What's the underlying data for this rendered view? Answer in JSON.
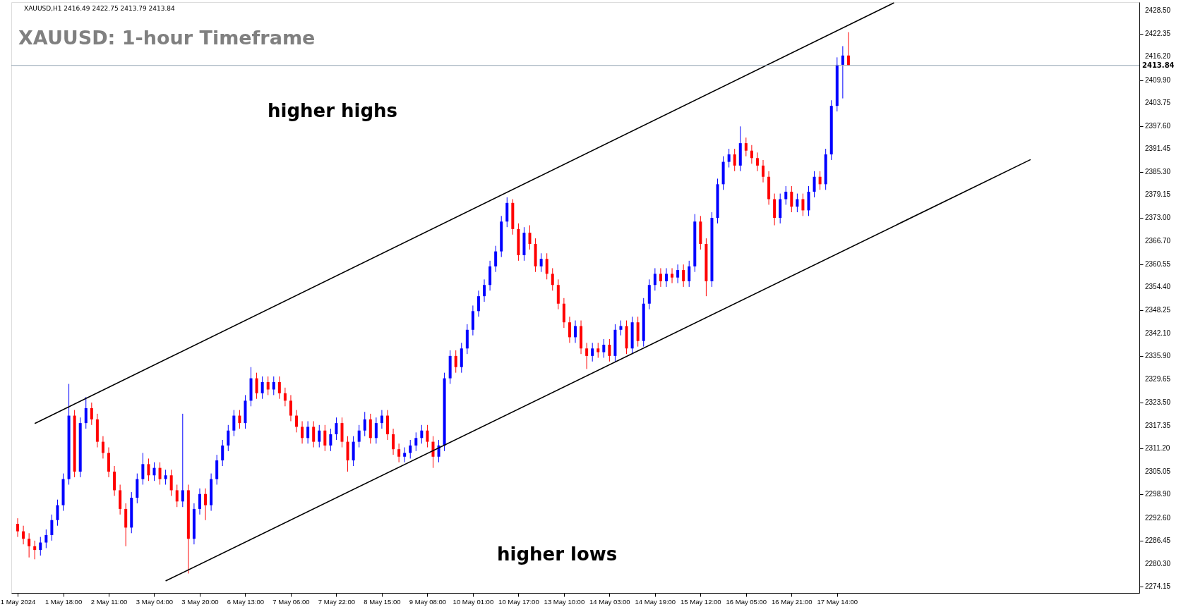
{
  "chart_data": {
    "type": "candlestick",
    "title": "XAUUSD: 1-hour Timeframe",
    "subtitle": "XAUUSD,H1  2416.49 2422.75 2413.79 2413.84",
    "categories": [
      "1 May 2024",
      null,
      null,
      null,
      null,
      null,
      null,
      null,
      "1 May 18:00",
      null,
      null,
      null,
      null,
      null,
      null,
      null,
      "2 May 11:00",
      null,
      null,
      null,
      null,
      null,
      null,
      null,
      "3 May 04:00",
      null,
      null,
      null,
      null,
      null,
      null,
      null,
      "3 May 20:00",
      null,
      null,
      null,
      null,
      null,
      null,
      null,
      "6 May 13:00",
      null,
      null,
      null,
      null,
      null,
      null,
      null,
      "7 May 06:00",
      null,
      null,
      null,
      null,
      null,
      null,
      null,
      "7 May 22:00",
      null,
      null,
      null,
      null,
      null,
      null,
      null,
      "8 May 15:00",
      null,
      null,
      null,
      null,
      null,
      null,
      null,
      "9 May 08:00",
      null,
      null,
      null,
      null,
      null,
      null,
      null,
      "10 May 01:00",
      null,
      null,
      null,
      null,
      null,
      null,
      null,
      "10 May 17:00",
      null,
      null,
      null,
      null,
      null,
      null,
      null,
      "13 May 10:00",
      null,
      null,
      null,
      null,
      null,
      null,
      null,
      "14 May 03:00",
      null,
      null,
      null,
      null,
      null,
      null,
      null,
      "14 May 19:00",
      null,
      null,
      null,
      null,
      null,
      null,
      null,
      "15 May 12:00",
      null,
      null,
      null,
      null,
      null,
      null,
      null,
      "16 May 05:00",
      null,
      null,
      null,
      null,
      null,
      null,
      null,
      "16 May 21:00",
      null,
      null,
      null,
      null,
      null,
      null,
      null,
      "17 May 14:00",
      null,
      null,
      null,
      null,
      null,
      null,
      null,
      null,
      null,
      null,
      null,
      null,
      null,
      null,
      null,
      null,
      null,
      null,
      null,
      null,
      null,
      null,
      null,
      null,
      null,
      null,
      null,
      null,
      null,
      null,
      null,
      null,
      null,
      null,
      null,
      null,
      null,
      null,
      null,
      null,
      null,
      null,
      null,
      null,
      null,
      null,
      null,
      null,
      null,
      null,
      null,
      null
    ],
    "ohlc": [
      [
        2291,
        2292.5,
        2287.5,
        2289
      ],
      [
        2289,
        2290.5,
        2285.5,
        2287
      ],
      [
        2287,
        2288.5,
        2282,
        2285
      ],
      [
        2285,
        2286.5,
        2281.5,
        2284
      ],
      [
        2284,
        2287.5,
        2282.5,
        2286
      ],
      [
        2286,
        2289.5,
        2284.5,
        2288
      ],
      [
        2288,
        2293.5,
        2286.5,
        2292
      ],
      [
        2292,
        2297.5,
        2290.5,
        2296
      ],
      [
        2296,
        2304.5,
        2294.5,
        2303
      ],
      [
        2303,
        2328.5,
        2301.5,
        2320
      ],
      [
        2320,
        2321.5,
        2303.5,
        2305
      ],
      [
        2305,
        2319.5,
        2303.5,
        2318
      ],
      [
        2318,
        2325,
        2316.5,
        2322
      ],
      [
        2322,
        2323.5,
        2317.5,
        2319
      ],
      [
        2319,
        2320.5,
        2311.5,
        2313
      ],
      [
        2313,
        2314.5,
        2308.5,
        2310
      ],
      [
        2310,
        2311.5,
        2303.5,
        2305
      ],
      [
        2305,
        2306.5,
        2298.5,
        2300
      ],
      [
        2300,
        2301.5,
        2293.5,
        2295
      ],
      [
        2295,
        2296.5,
        2285,
        2290
      ],
      [
        2290,
        2299.5,
        2288.5,
        2298
      ],
      [
        2298,
        2304.5,
        2296.5,
        2303
      ],
      [
        2303,
        2310,
        2301.5,
        2307
      ],
      [
        2307,
        2308.5,
        2302.5,
        2304
      ],
      [
        2304,
        2307.5,
        2302.5,
        2306
      ],
      [
        2306,
        2307.5,
        2301.5,
        2303
      ],
      [
        2303,
        2305.5,
        2301.5,
        2304
      ],
      [
        2304,
        2305.5,
        2298.5,
        2300
      ],
      [
        2300,
        2301.5,
        2295.5,
        2297
      ],
      [
        2297,
        2320.5,
        2295.5,
        2300
      ],
      [
        2300,
        2301.5,
        2277.7,
        2287
      ],
      [
        2287,
        2296.5,
        2285.5,
        2295
      ],
      [
        2295,
        2300.5,
        2293.5,
        2299
      ],
      [
        2299,
        2300.5,
        2292,
        2296
      ],
      [
        2296,
        2304.5,
        2294.5,
        2303
      ],
      [
        2303,
        2309.5,
        2301.5,
        2308
      ],
      [
        2308,
        2313.5,
        2306.5,
        2312
      ],
      [
        2312,
        2317.5,
        2310.5,
        2316
      ],
      [
        2316,
        2321.5,
        2314.5,
        2320
      ],
      [
        2320,
        2321.5,
        2316.5,
        2318
      ],
      [
        2318,
        2325.5,
        2316.5,
        2324
      ],
      [
        2324,
        2333,
        2322.5,
        2330
      ],
      [
        2330,
        2331.5,
        2324.5,
        2326
      ],
      [
        2326,
        2330.5,
        2324.5,
        2329
      ],
      [
        2329,
        2330.5,
        2325.5,
        2327
      ],
      [
        2327,
        2330.5,
        2325.5,
        2329
      ],
      [
        2329,
        2330.5,
        2324.5,
        2326
      ],
      [
        2326,
        2327.5,
        2322.5,
        2324
      ],
      [
        2324,
        2325.5,
        2318.5,
        2320
      ],
      [
        2320,
        2321.5,
        2315.5,
        2317
      ],
      [
        2317,
        2318.5,
        2312.5,
        2314
      ],
      [
        2314,
        2318.5,
        2312.5,
        2317
      ],
      [
        2317,
        2318.5,
        2311.5,
        2313
      ],
      [
        2313,
        2317.5,
        2311.5,
        2316
      ],
      [
        2316,
        2317.5,
        2310.5,
        2312
      ],
      [
        2312,
        2316.5,
        2310.5,
        2315
      ],
      [
        2315,
        2319.5,
        2313.5,
        2318
      ],
      [
        2318,
        2319.5,
        2311.5,
        2313
      ],
      [
        2313,
        2314.5,
        2305,
        2308
      ],
      [
        2308,
        2314.5,
        2306.5,
        2313
      ],
      [
        2313,
        2317.5,
        2311.5,
        2316
      ],
      [
        2316,
        2321,
        2314.5,
        2319
      ],
      [
        2319,
        2320.5,
        2312.5,
        2314
      ],
      [
        2314,
        2319.5,
        2312.5,
        2318
      ],
      [
        2318,
        2321.5,
        2316.5,
        2320
      ],
      [
        2320,
        2321.5,
        2313.5,
        2315
      ],
      [
        2315,
        2316.5,
        2309.5,
        2311
      ],
      [
        2311,
        2312.5,
        2307.5,
        2309
      ],
      [
        2309,
        2311.5,
        2307.5,
        2310
      ],
      [
        2310,
        2313.5,
        2308.5,
        2312
      ],
      [
        2312,
        2315.5,
        2310.5,
        2314
      ],
      [
        2314,
        2317.5,
        2312.5,
        2316
      ],
      [
        2316,
        2317.5,
        2311.5,
        2313
      ],
      [
        2313,
        2314.5,
        2306,
        2309
      ],
      [
        2309,
        2313.5,
        2307.5,
        2312
      ],
      [
        2312,
        2331.5,
        2310.5,
        2330
      ],
      [
        2330,
        2337.5,
        2328.5,
        2336
      ],
      [
        2336,
        2337.5,
        2331.5,
        2333
      ],
      [
        2333,
        2339.5,
        2331.5,
        2338
      ],
      [
        2338,
        2344.5,
        2336.5,
        2343
      ],
      [
        2343,
        2349.5,
        2341.5,
        2348
      ],
      [
        2348,
        2353.5,
        2346.5,
        2352
      ],
      [
        2352,
        2356.5,
        2350.5,
        2355
      ],
      [
        2355,
        2361.5,
        2353.5,
        2360
      ],
      [
        2360,
        2365.5,
        2358.5,
        2364
      ],
      [
        2364,
        2373.5,
        2362.5,
        2372
      ],
      [
        2372,
        2378.5,
        2370.5,
        2377
      ],
      [
        2377,
        2378,
        2368.5,
        2370
      ],
      [
        2370,
        2371.5,
        2361.5,
        2363
      ],
      [
        2363,
        2370.5,
        2361.5,
        2369
      ],
      [
        2369,
        2371,
        2364.5,
        2366
      ],
      [
        2366,
        2367.5,
        2358.5,
        2360
      ],
      [
        2360,
        2363.5,
        2358.5,
        2362
      ],
      [
        2362,
        2363.5,
        2356.5,
        2358
      ],
      [
        2358,
        2359.5,
        2353.5,
        2355
      ],
      [
        2355,
        2356.5,
        2348.5,
        2350
      ],
      [
        2350,
        2351.5,
        2343.5,
        2345
      ],
      [
        2345,
        2346.5,
        2339.5,
        2341
      ],
      [
        2341,
        2345.5,
        2339.5,
        2344
      ],
      [
        2344,
        2345.5,
        2336.5,
        2338
      ],
      [
        2338,
        2339.5,
        2332.5,
        2336
      ],
      [
        2336,
        2339.5,
        2334.5,
        2338
      ],
      [
        2338,
        2339.5,
        2335.5,
        2337
      ],
      [
        2337,
        2340.5,
        2335.5,
        2339
      ],
      [
        2339,
        2340.5,
        2334.5,
        2336
      ],
      [
        2336,
        2344.5,
        2334.5,
        2343
      ],
      [
        2343,
        2345.5,
        2341.5,
        2344
      ],
      [
        2344,
        2345.5,
        2336.5,
        2338
      ],
      [
        2338,
        2346.5,
        2336.5,
        2345
      ],
      [
        2345,
        2346.5,
        2338.5,
        2340
      ],
      [
        2340,
        2351.5,
        2338.5,
        2350
      ],
      [
        2350,
        2356.5,
        2348.5,
        2355
      ],
      [
        2355,
        2359.5,
        2353.5,
        2358
      ],
      [
        2358,
        2359.5,
        2354.5,
        2356
      ],
      [
        2356,
        2359.5,
        2354.5,
        2358
      ],
      [
        2358,
        2359.5,
        2355.5,
        2357
      ],
      [
        2357,
        2360.5,
        2355.5,
        2359
      ],
      [
        2359,
        2360.5,
        2354.5,
        2356
      ],
      [
        2356,
        2361.5,
        2354.5,
        2360
      ],
      [
        2360,
        2374,
        2358.5,
        2372
      ],
      [
        2372,
        2373.5,
        2364.5,
        2366
      ],
      [
        2366,
        2367.5,
        2352,
        2356
      ],
      [
        2356,
        2374.5,
        2354.5,
        2373
      ],
      [
        2373,
        2383.5,
        2371.5,
        2382
      ],
      [
        2382,
        2389.5,
        2380.5,
        2388
      ],
      [
        2388,
        2391.5,
        2386.5,
        2390
      ],
      [
        2390,
        2391.5,
        2385.5,
        2387
      ],
      [
        2387,
        2397.5,
        2385.5,
        2393
      ],
      [
        2393,
        2394.5,
        2389.5,
        2391
      ],
      [
        2391,
        2392.5,
        2387.5,
        2389
      ],
      [
        2389,
        2390.5,
        2385.5,
        2387
      ],
      [
        2387,
        2388.5,
        2382.5,
        2384
      ],
      [
        2384,
        2385.5,
        2376.5,
        2378
      ],
      [
        2378,
        2379.5,
        2371,
        2373
      ],
      [
        2373,
        2379.5,
        2371.5,
        2378
      ],
      [
        2378,
        2381.5,
        2376.5,
        2380
      ],
      [
        2380,
        2381.5,
        2374.5,
        2376
      ],
      [
        2376,
        2379.5,
        2374.5,
        2378
      ],
      [
        2378,
        2379.5,
        2373.5,
        2375
      ],
      [
        2375,
        2381.5,
        2373.5,
        2380
      ],
      [
        2380,
        2385.5,
        2378.5,
        2384
      ],
      [
        2384,
        2385.5,
        2380.5,
        2382
      ],
      [
        2382,
        2391.5,
        2380.5,
        2390
      ],
      [
        2390,
        2404.5,
        2388.5,
        2403
      ],
      [
        2403,
        2416,
        2401.5,
        2414
      ],
      [
        2414,
        2419,
        2405,
        2416.49
      ],
      [
        2416.49,
        2422.75,
        2413.79,
        2413.84
      ],
      null,
      null,
      null,
      null,
      null,
      null,
      null,
      null,
      null,
      null,
      null,
      null,
      null,
      null,
      null,
      null,
      null,
      null,
      null,
      null,
      null,
      null,
      null,
      null,
      null,
      null,
      null,
      null,
      null,
      null,
      null,
      null,
      null,
      null,
      null,
      null,
      null,
      null,
      null,
      null,
      null,
      null,
      null,
      null,
      null,
      null,
      null,
      null,
      null,
      null
    ],
    "colors": [
      "#ff0000",
      "#ff0000",
      "#ff0000",
      "#ff0000",
      "#0000ff",
      "#0000ff",
      "#0000ff",
      "#0000ff",
      "#0000ff",
      "#0000ff",
      "#ff0000",
      "#0000ff",
      "#0000ff",
      "#ff0000",
      "#ff0000",
      "#ff0000",
      "#ff0000",
      "#ff0000",
      "#ff0000",
      "#ff0000",
      "#0000ff",
      "#0000ff",
      "#0000ff",
      "#ff0000",
      "#0000ff",
      "#ff0000",
      "#0000ff",
      "#ff0000",
      "#ff0000",
      "#0000ff",
      "#ff0000",
      "#0000ff",
      "#0000ff",
      "#ff0000",
      "#0000ff",
      "#0000ff",
      "#0000ff",
      "#0000ff",
      "#0000ff",
      "#ff0000",
      "#0000ff",
      "#0000ff",
      "#ff0000",
      "#0000ff",
      "#ff0000",
      "#0000ff",
      "#ff0000",
      "#ff0000",
      "#ff0000",
      "#ff0000",
      "#ff0000",
      "#0000ff",
      "#ff0000",
      "#0000ff",
      "#ff0000",
      "#0000ff",
      "#0000ff",
      "#ff0000",
      "#ff0000",
      "#0000ff",
      "#0000ff",
      "#0000ff",
      "#ff0000",
      "#0000ff",
      "#0000ff",
      "#ff0000",
      "#ff0000",
      "#ff0000",
      "#0000ff",
      "#0000ff",
      "#0000ff",
      "#0000ff",
      "#ff0000",
      "#ff0000",
      "#0000ff",
      "#0000ff",
      "#0000ff",
      "#ff0000",
      "#0000ff",
      "#0000ff",
      "#0000ff",
      "#0000ff",
      "#0000ff",
      "#0000ff",
      "#0000ff",
      "#0000ff",
      "#0000ff",
      "#ff0000",
      "#ff0000",
      "#0000ff",
      "#ff0000",
      "#ff0000",
      "#0000ff",
      "#ff0000",
      "#ff0000",
      "#ff0000",
      "#ff0000",
      "#ff0000",
      "#0000ff",
      "#ff0000",
      "#ff0000",
      "#0000ff",
      "#ff0000",
      "#0000ff",
      "#ff0000",
      "#0000ff",
      "#0000ff",
      "#ff0000",
      "#0000ff",
      "#ff0000",
      "#0000ff",
      "#0000ff",
      "#0000ff",
      "#ff0000",
      "#0000ff",
      "#ff0000",
      "#0000ff",
      "#ff0000",
      "#0000ff",
      "#0000ff",
      "#ff0000",
      "#ff0000",
      "#0000ff",
      "#0000ff",
      "#0000ff",
      "#0000ff",
      "#ff0000",
      "#0000ff",
      "#ff0000",
      "#ff0000",
      "#ff0000",
      "#ff0000",
      "#ff0000",
      "#ff0000",
      "#0000ff",
      "#0000ff",
      "#ff0000",
      "#0000ff",
      "#ff0000",
      "#0000ff",
      "#0000ff",
      "#ff0000",
      "#0000ff",
      "#0000ff",
      "#0000ff",
      "#0000ff",
      "#ff0000",
      null,
      null,
      null,
      null,
      null,
      null,
      null,
      null,
      null,
      null,
      null,
      null,
      null,
      null,
      null,
      null,
      null,
      null,
      null,
      null,
      null,
      null,
      null,
      null,
      null,
      null,
      null,
      null,
      null,
      null,
      null,
      null,
      null,
      null,
      null,
      null,
      null,
      null,
      null,
      null,
      null,
      null,
      null,
      null,
      null,
      null,
      null,
      null,
      null,
      null
    ],
    "series": [
      {
        "type": "line",
        "color": "#000000",
        "values": [
          null,
          null,
          null,
          2317.9,
          null,
          null,
          null,
          null,
          null,
          null,
          null,
          null,
          null,
          null,
          null,
          null,
          null,
          null,
          null,
          null,
          null,
          null,
          null,
          null,
          null,
          null,
          null,
          null,
          null,
          null,
          null,
          null,
          null,
          null,
          null,
          null,
          null,
          null,
          null,
          null,
          null,
          null,
          null,
          null,
          null,
          null,
          null,
          null,
          null,
          null,
          null,
          null,
          null,
          null,
          null,
          null,
          null,
          null,
          null,
          null,
          null,
          null,
          null,
          null,
          null,
          null,
          null,
          null,
          null,
          null,
          null,
          null,
          null,
          null,
          null,
          null,
          null,
          null,
          null,
          null,
          null,
          null,
          null,
          null,
          null,
          null,
          null,
          null,
          null,
          null,
          null,
          null,
          null,
          null,
          null,
          null,
          null,
          null,
          null,
          null,
          null,
          null,
          null,
          null,
          null,
          null,
          null,
          null,
          null,
          null,
          null,
          null,
          null,
          null,
          null,
          null,
          null,
          null,
          null,
          null,
          null,
          null,
          null,
          null,
          null,
          null,
          null,
          null,
          null,
          null,
          null,
          null,
          null,
          null,
          null,
          null,
          null,
          null,
          null,
          null,
          null,
          null,
          null,
          null,
          null,
          null,
          null,
          null,
          null,
          null,
          null,
          null,
          null,
          null,
          2430.6,
          null,
          null,
          null,
          null,
          null,
          null,
          null,
          null,
          null,
          null,
          null,
          null,
          null,
          null,
          null,
          null,
          null,
          null,
          null,
          null,
          null,
          null,
          null,
          null,
          null,
          null,
          null,
          null,
          null,
          null,
          null,
          null,
          null,
          null,
          null,
          null,
          null,
          null,
          null,
          null,
          null,
          null
        ]
      },
      {
        "type": "line",
        "color": "#000000",
        "values": [
          null,
          null,
          null,
          null,
          null,
          null,
          null,
          null,
          null,
          null,
          null,
          null,
          null,
          null,
          null,
          null,
          null,
          null,
          null,
          null,
          null,
          null,
          null,
          null,
          null,
          null,
          2275.7,
          null,
          null,
          null,
          null,
          null,
          null,
          null,
          null,
          null,
          null,
          null,
          null,
          null,
          null,
          null,
          null,
          null,
          null,
          null,
          null,
          null,
          null,
          null,
          null,
          null,
          null,
          null,
          null,
          null,
          null,
          null,
          null,
          null,
          null,
          null,
          null,
          null,
          null,
          null,
          null,
          null,
          null,
          null,
          null,
          null,
          null,
          null,
          null,
          null,
          null,
          null,
          null,
          null,
          null,
          null,
          null,
          null,
          null,
          null,
          null,
          null,
          null,
          null,
          null,
          null,
          null,
          null,
          null,
          null,
          null,
          null,
          null,
          null,
          null,
          null,
          null,
          null,
          null,
          null,
          null,
          null,
          null,
          null,
          null,
          null,
          null,
          null,
          null,
          null,
          null,
          null,
          null,
          null,
          null,
          null,
          null,
          null,
          null,
          null,
          null,
          null,
          null,
          null,
          null,
          null,
          null,
          null,
          null,
          null,
          null,
          null,
          null,
          null,
          null,
          null,
          null,
          null,
          null,
          null,
          null,
          null,
          null,
          null,
          null,
          null,
          null,
          null,
          null,
          null,
          null,
          null,
          null,
          null,
          null,
          null,
          null,
          null,
          null,
          null,
          null,
          null,
          null,
          null,
          null,
          null,
          null,
          null,
          null,
          null,
          null,
          null,
          2388.6,
          null,
          null,
          null,
          null,
          null,
          null,
          null,
          null,
          null,
          null,
          null,
          null,
          null,
          null,
          null,
          null,
          null,
          null
        ]
      }
    ],
    "ylim": [
      2272.5,
      2430.8
    ],
    "yticks": [
      {
        "value": 2274.15,
        "label": "2274.15"
      },
      {
        "value": 2280.3,
        "label": "2280.30"
      },
      {
        "value": 2286.45,
        "label": "2286.45"
      },
      {
        "value": 2292.6,
        "label": "2292.60"
      },
      {
        "value": 2298.9,
        "label": "2298.90"
      },
      {
        "value": 2305.05,
        "label": "2305.05"
      },
      {
        "value": 2311.2,
        "label": "2311.20"
      },
      {
        "value": 2317.35,
        "label": "2317.35"
      },
      {
        "value": 2323.5,
        "label": "2323.50"
      },
      {
        "value": 2329.65,
        "label": "2329.65"
      },
      {
        "value": 2335.9,
        "label": "2335.90"
      },
      {
        "value": 2342.1,
        "label": "2342.10"
      },
      {
        "value": 2348.25,
        "label": "2348.25"
      },
      {
        "value": 2354.4,
        "label": "2354.40"
      },
      {
        "value": 2360.55,
        "label": "2360.55"
      },
      {
        "value": 2366.7,
        "label": "2366.70"
      },
      {
        "value": 2373,
        "label": "2373.00"
      },
      {
        "value": 2379.15,
        "label": "2379.15"
      },
      {
        "value": 2385.3,
        "label": "2385.30"
      },
      {
        "value": 2391.45,
        "label": "2391.45"
      },
      {
        "value": 2397.6,
        "label": "2397.60"
      },
      {
        "value": 2403.75,
        "label": "2403.75"
      },
      {
        "value": 2409.9,
        "label": "2409.90"
      },
      {
        "value": 2416.2,
        "label": "2416.20"
      },
      {
        "value": 2422.35,
        "label": "2422.35"
      },
      {
        "value": 2428.5,
        "label": "2428.50"
      }
    ],
    "ref_lines": [
      {
        "axis": "y",
        "value": 2413.84,
        "label": "2413.84",
        "color": "#8fa0b0"
      }
    ],
    "annotations": [
      "higher highs",
      "higher lows"
    ],
    "grid": false
  }
}
